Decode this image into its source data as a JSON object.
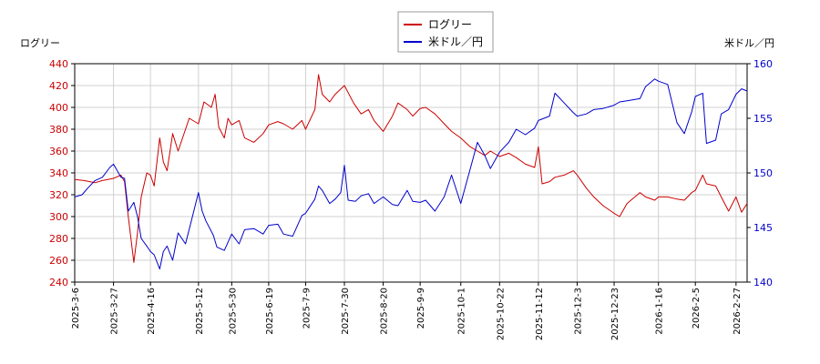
{
  "chart_data": {
    "type": "line",
    "title": "",
    "legend": {
      "placement": "top-center",
      "entries": [
        {
          "label": "ログリー",
          "color": "#cc0000"
        },
        {
          "label": "米ドル／円",
          "color": "#0000cc"
        }
      ]
    },
    "left_axis": {
      "label": "ログリー",
      "range": [
        240,
        440
      ],
      "ticks": [
        240,
        260,
        280,
        300,
        320,
        340,
        360,
        380,
        400,
        420,
        440
      ],
      "color": "#cc0000"
    },
    "right_axis": {
      "label": "米ドル／円",
      "range": [
        140,
        160
      ],
      "ticks": [
        140,
        145,
        150,
        155,
        160
      ],
      "color": "#0000cc"
    },
    "x_axis": {
      "start": "2025-03-06",
      "end": "2026-03-05",
      "tick_labels": [
        "2025-3-6",
        "2025-3-27",
        "2025-4-16",
        "2025-5-12",
        "2025-5-30",
        "2025-6-19",
        "2025-7-9",
        "2025-7-30",
        "2025-8-20",
        "2025-9-9",
        "2025-10-1",
        "2025-10-22",
        "2025-11-12",
        "2025-12-3",
        "2025-12-23",
        "2026-1-16",
        "2026-2-5",
        "2026-2-27"
      ]
    },
    "grid": true,
    "series": [
      {
        "name": "ログリー",
        "axis": "left",
        "color": "#cc0000",
        "points": [
          [
            "2025-03-06",
            334
          ],
          [
            "2025-03-11",
            333
          ],
          [
            "2025-03-17",
            331
          ],
          [
            "2025-03-21",
            333
          ],
          [
            "2025-03-27",
            335
          ],
          [
            "2025-03-31",
            338
          ],
          [
            "2025-04-02",
            332
          ],
          [
            "2025-04-04",
            300
          ],
          [
            "2025-04-07",
            258
          ],
          [
            "2025-04-09",
            285
          ],
          [
            "2025-04-11",
            318
          ],
          [
            "2025-04-14",
            340
          ],
          [
            "2025-04-16",
            338
          ],
          [
            "2025-04-18",
            328
          ],
          [
            "2025-04-21",
            372
          ],
          [
            "2025-04-23",
            350
          ],
          [
            "2025-04-25",
            342
          ],
          [
            "2025-04-28",
            376
          ],
          [
            "2025-05-01",
            360
          ],
          [
            "2025-05-07",
            390
          ],
          [
            "2025-05-12",
            385
          ],
          [
            "2025-05-15",
            405
          ],
          [
            "2025-05-19",
            400
          ],
          [
            "2025-05-21",
            412
          ],
          [
            "2025-05-23",
            382
          ],
          [
            "2025-05-26",
            372
          ],
          [
            "2025-05-28",
            390
          ],
          [
            "2025-05-30",
            384
          ],
          [
            "2025-06-03",
            388
          ],
          [
            "2025-06-06",
            372
          ],
          [
            "2025-06-11",
            368
          ],
          [
            "2025-06-16",
            376
          ],
          [
            "2025-06-19",
            384
          ],
          [
            "2025-06-24",
            387
          ],
          [
            "2025-06-27",
            385
          ],
          [
            "2025-07-02",
            380
          ],
          [
            "2025-07-07",
            388
          ],
          [
            "2025-07-09",
            380
          ],
          [
            "2025-07-14",
            398
          ],
          [
            "2025-07-16",
            430
          ],
          [
            "2025-07-18",
            412
          ],
          [
            "2025-07-22",
            405
          ],
          [
            "2025-07-25",
            412
          ],
          [
            "2025-07-30",
            420
          ],
          [
            "2025-08-04",
            404
          ],
          [
            "2025-08-08",
            394
          ],
          [
            "2025-08-12",
            398
          ],
          [
            "2025-08-15",
            388
          ],
          [
            "2025-08-20",
            378
          ],
          [
            "2025-08-25",
            392
          ],
          [
            "2025-08-28",
            404
          ],
          [
            "2025-09-02",
            398
          ],
          [
            "2025-09-05",
            392
          ],
          [
            "2025-09-09",
            399
          ],
          [
            "2025-09-12",
            400
          ],
          [
            "2025-09-17",
            394
          ],
          [
            "2025-09-22",
            385
          ],
          [
            "2025-09-26",
            378
          ],
          [
            "2025-10-01",
            372
          ],
          [
            "2025-10-06",
            364
          ],
          [
            "2025-10-10",
            360
          ],
          [
            "2025-10-14",
            356
          ],
          [
            "2025-10-17",
            360
          ],
          [
            "2025-10-22",
            355
          ],
          [
            "2025-10-27",
            358
          ],
          [
            "2025-10-31",
            354
          ],
          [
            "2025-11-05",
            348
          ],
          [
            "2025-11-10",
            345
          ],
          [
            "2025-11-12",
            364
          ],
          [
            "2025-11-14",
            330
          ],
          [
            "2025-11-18",
            332
          ],
          [
            "2025-11-21",
            336
          ],
          [
            "2025-11-26",
            338
          ],
          [
            "2025-12-01",
            342
          ],
          [
            "2025-12-03",
            338
          ],
          [
            "2025-12-08",
            326
          ],
          [
            "2025-12-12",
            318
          ],
          [
            "2025-12-17",
            310
          ],
          [
            "2025-12-23",
            303
          ],
          [
            "2025-12-26",
            300
          ],
          [
            "2025-12-30",
            312
          ],
          [
            "2026-01-06",
            322
          ],
          [
            "2026-01-09",
            318
          ],
          [
            "2026-01-14",
            315
          ],
          [
            "2026-01-16",
            318
          ],
          [
            "2026-01-21",
            318
          ],
          [
            "2026-01-26",
            316
          ],
          [
            "2026-01-30",
            315
          ],
          [
            "2026-02-03",
            322
          ],
          [
            "2026-02-05",
            324
          ],
          [
            "2026-02-09",
            338
          ],
          [
            "2026-02-11",
            330
          ],
          [
            "2026-02-16",
            328
          ],
          [
            "2026-02-19",
            318
          ],
          [
            "2026-02-23",
            305
          ],
          [
            "2026-02-27",
            318
          ],
          [
            "2026-03-02",
            304
          ],
          [
            "2026-03-05",
            312
          ]
        ]
      },
      {
        "name": "米ドル／円",
        "axis": "right",
        "color": "#0000cc",
        "points": [
          [
            "2025-03-06",
            147.8
          ],
          [
            "2025-03-10",
            148.0
          ],
          [
            "2025-03-13",
            148.6
          ],
          [
            "2025-03-17",
            149.3
          ],
          [
            "2025-03-21",
            149.6
          ],
          [
            "2025-03-25",
            150.5
          ],
          [
            "2025-03-27",
            150.8
          ],
          [
            "2025-03-31",
            149.6
          ],
          [
            "2025-04-02",
            149.5
          ],
          [
            "2025-04-04",
            146.5
          ],
          [
            "2025-04-07",
            147.3
          ],
          [
            "2025-04-09",
            146.0
          ],
          [
            "2025-04-11",
            144.0
          ],
          [
            "2025-04-14",
            143.3
          ],
          [
            "2025-04-16",
            142.8
          ],
          [
            "2025-04-18",
            142.5
          ],
          [
            "2025-04-21",
            141.2
          ],
          [
            "2025-04-23",
            142.8
          ],
          [
            "2025-04-25",
            143.3
          ],
          [
            "2025-04-28",
            142.0
          ],
          [
            "2025-05-01",
            144.5
          ],
          [
            "2025-05-05",
            143.5
          ],
          [
            "2025-05-08",
            145.5
          ],
          [
            "2025-05-12",
            148.2
          ],
          [
            "2025-05-14",
            146.5
          ],
          [
            "2025-05-16",
            145.6
          ],
          [
            "2025-05-20",
            144.3
          ],
          [
            "2025-05-22",
            143.2
          ],
          [
            "2025-05-26",
            142.9
          ],
          [
            "2025-05-30",
            144.4
          ],
          [
            "2025-06-03",
            143.5
          ],
          [
            "2025-06-06",
            144.8
          ],
          [
            "2025-06-11",
            144.9
          ],
          [
            "2025-06-16",
            144.4
          ],
          [
            "2025-06-19",
            145.2
          ],
          [
            "2025-06-24",
            145.3
          ],
          [
            "2025-06-27",
            144.4
          ],
          [
            "2025-07-02",
            144.2
          ],
          [
            "2025-07-07",
            146.1
          ],
          [
            "2025-07-09",
            146.3
          ],
          [
            "2025-07-14",
            147.6
          ],
          [
            "2025-07-16",
            148.8
          ],
          [
            "2025-07-18",
            148.4
          ],
          [
            "2025-07-22",
            147.2
          ],
          [
            "2025-07-25",
            147.6
          ],
          [
            "2025-07-28",
            148.2
          ],
          [
            "2025-07-30",
            150.7
          ],
          [
            "2025-08-01",
            147.5
          ],
          [
            "2025-08-05",
            147.4
          ],
          [
            "2025-08-08",
            147.9
          ],
          [
            "2025-08-12",
            148.1
          ],
          [
            "2025-08-15",
            147.2
          ],
          [
            "2025-08-20",
            147.8
          ],
          [
            "2025-08-25",
            147.1
          ],
          [
            "2025-08-28",
            147.0
          ],
          [
            "2025-09-02",
            148.4
          ],
          [
            "2025-09-05",
            147.4
          ],
          [
            "2025-09-09",
            147.3
          ],
          [
            "2025-09-12",
            147.5
          ],
          [
            "2025-09-17",
            146.5
          ],
          [
            "2025-09-22",
            147.8
          ],
          [
            "2025-09-26",
            149.8
          ],
          [
            "2025-10-01",
            147.2
          ],
          [
            "2025-10-06",
            150.3
          ],
          [
            "2025-10-10",
            152.8
          ],
          [
            "2025-10-14",
            151.6
          ],
          [
            "2025-10-17",
            150.4
          ],
          [
            "2025-10-22",
            151.9
          ],
          [
            "2025-10-27",
            152.8
          ],
          [
            "2025-10-31",
            154.0
          ],
          [
            "2025-11-05",
            153.5
          ],
          [
            "2025-11-10",
            154.1
          ],
          [
            "2025-11-12",
            154.8
          ],
          [
            "2025-11-18",
            155.2
          ],
          [
            "2025-11-21",
            157.3
          ],
          [
            "2025-11-26",
            156.4
          ],
          [
            "2025-12-01",
            155.5
          ],
          [
            "2025-12-03",
            155.2
          ],
          [
            "2025-12-08",
            155.4
          ],
          [
            "2025-12-12",
            155.8
          ],
          [
            "2025-12-17",
            155.9
          ],
          [
            "2025-12-23",
            156.2
          ],
          [
            "2025-12-26",
            156.5
          ],
          [
            "2025-12-30",
            156.6
          ],
          [
            "2026-01-06",
            156.8
          ],
          [
            "2026-01-09",
            157.9
          ],
          [
            "2026-01-14",
            158.6
          ],
          [
            "2026-01-16",
            158.4
          ],
          [
            "2026-01-21",
            158.1
          ],
          [
            "2026-01-26",
            154.6
          ],
          [
            "2026-01-30",
            153.6
          ],
          [
            "2026-02-03",
            155.6
          ],
          [
            "2026-02-05",
            157.0
          ],
          [
            "2026-02-09",
            157.3
          ],
          [
            "2026-02-11",
            152.7
          ],
          [
            "2026-02-16",
            153.0
          ],
          [
            "2026-02-19",
            155.4
          ],
          [
            "2026-02-23",
            155.8
          ],
          [
            "2026-02-27",
            157.2
          ],
          [
            "2026-03-02",
            157.7
          ],
          [
            "2026-03-05",
            157.5
          ]
        ]
      }
    ]
  }
}
